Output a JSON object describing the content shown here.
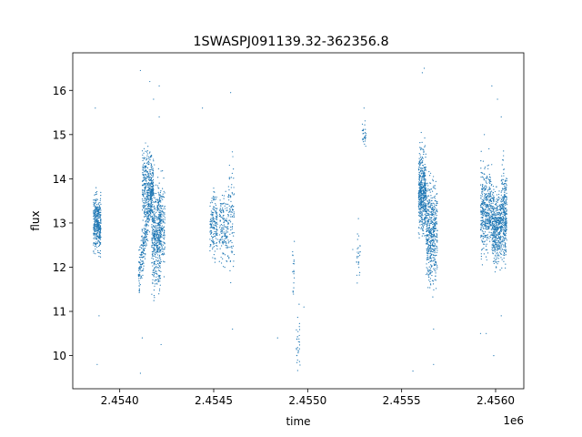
{
  "chart_data": {
    "type": "scatter",
    "title": "1SWASPJ091139.32-362356.8",
    "xlabel": "time",
    "ylabel": "flux",
    "x_offset_label": "1e6",
    "xlim": [
      2.45375,
      2.45615
    ],
    "ylim": [
      9.25,
      16.85
    ],
    "x_ticks": [
      2.454,
      2.4545,
      2.455,
      2.4555,
      2.456
    ],
    "x_tick_labels": [
      "2.4540",
      "2.4545",
      "2.4550",
      "2.4555",
      "2.4560"
    ],
    "y_ticks": [
      10,
      11,
      12,
      13,
      14,
      15,
      16
    ],
    "y_tick_labels": [
      "10",
      "11",
      "12",
      "13",
      "14",
      "15",
      "16"
    ],
    "grid": false,
    "marker_color": "#1f77b4",
    "marker_size": 0.6,
    "clusters": [
      {
        "x": [
          2.45386,
          2.4539
        ],
        "y_mean": 13.0,
        "y_spread": 0.3,
        "n": 380
      },
      {
        "x": [
          2.4541,
          2.45418
        ],
        "y_start": 11.7,
        "y_end": 14.0,
        "y_spread": 0.25,
        "n": 360
      },
      {
        "x": [
          2.45412,
          2.45417
        ],
        "y_mean": 13.9,
        "y_spread": 0.4,
        "n": 300
      },
      {
        "x": [
          2.45417,
          2.45422
        ],
        "y_mean": 12.7,
        "y_spread": 0.55,
        "n": 420
      },
      {
        "x": [
          2.4542,
          2.45424
        ],
        "y_mean": 12.9,
        "y_spread": 0.45,
        "n": 220
      },
      {
        "x": [
          2.45448,
          2.45452
        ],
        "y_mean": 13.0,
        "y_spread": 0.35,
        "n": 170
      },
      {
        "x": [
          2.45453,
          2.45458
        ],
        "y_mean": 12.9,
        "y_spread": 0.4,
        "n": 170
      },
      {
        "x": [
          2.45458,
          2.45461
        ],
        "y_mean": 13.1,
        "y_spread": 0.55,
        "n": 90
      },
      {
        "x": [
          2.45492,
          2.45493
        ],
        "y_mean": 12.0,
        "y_spread": 0.35,
        "n": 18
      },
      {
        "x": [
          2.45494,
          2.45496
        ],
        "y_mean": 10.3,
        "y_spread": 0.3,
        "n": 30
      },
      {
        "x": [
          2.45526,
          2.45528
        ],
        "y_mean": 12.2,
        "y_spread": 0.35,
        "n": 25
      },
      {
        "x": [
          2.45529,
          2.45531
        ],
        "y_mean": 15.0,
        "y_spread": 0.15,
        "n": 30
      },
      {
        "x": [
          2.45559,
          2.45563
        ],
        "y_mean": 13.7,
        "y_spread": 0.45,
        "n": 520
      },
      {
        "x": [
          2.45563,
          2.45569
        ],
        "y_mean": 12.8,
        "y_spread": 0.55,
        "n": 520
      },
      {
        "x": [
          2.45592,
          2.45598
        ],
        "y_mean": 13.3,
        "y_spread": 0.45,
        "n": 420
      },
      {
        "x": [
          2.45598,
          2.45603
        ],
        "y_mean": 12.9,
        "y_spread": 0.4,
        "n": 460
      },
      {
        "x": [
          2.45603,
          2.45606
        ],
        "y_mean": 13.2,
        "y_spread": 0.5,
        "n": 300
      }
    ],
    "outliers": [
      {
        "x": 2.45387,
        "y": 15.6
      },
      {
        "x": 2.45388,
        "y": 9.8
      },
      {
        "x": 2.45389,
        "y": 10.9
      },
      {
        "x": 2.45411,
        "y": 16.45
      },
      {
        "x": 2.45411,
        "y": 9.6
      },
      {
        "x": 2.45412,
        "y": 10.4
      },
      {
        "x": 2.45416,
        "y": 16.2
      },
      {
        "x": 2.45418,
        "y": 15.8
      },
      {
        "x": 2.45421,
        "y": 16.1
      },
      {
        "x": 2.45422,
        "y": 10.25
      },
      {
        "x": 2.45421,
        "y": 15.4
      },
      {
        "x": 2.45444,
        "y": 15.6
      },
      {
        "x": 2.45459,
        "y": 15.95
      },
      {
        "x": 2.4546,
        "y": 10.6
      },
      {
        "x": 2.45484,
        "y": 10.4
      },
      {
        "x": 2.45492,
        "y": 12.35
      },
      {
        "x": 2.45498,
        "y": 11.1
      },
      {
        "x": 2.45524,
        "y": 12.4
      },
      {
        "x": 2.45527,
        "y": 13.1
      },
      {
        "x": 2.4553,
        "y": 15.6
      },
      {
        "x": 2.45556,
        "y": 9.65
      },
      {
        "x": 2.45561,
        "y": 16.4
      },
      {
        "x": 2.45562,
        "y": 16.5
      },
      {
        "x": 2.45567,
        "y": 9.8
      },
      {
        "x": 2.45567,
        "y": 10.6
      },
      {
        "x": 2.45592,
        "y": 10.5
      },
      {
        "x": 2.45594,
        "y": 15.0
      },
      {
        "x": 2.45598,
        "y": 16.1
      },
      {
        "x": 2.45601,
        "y": 15.8
      },
      {
        "x": 2.45603,
        "y": 15.4
      },
      {
        "x": 2.45603,
        "y": 10.9
      },
      {
        "x": 2.45599,
        "y": 10.0
      },
      {
        "x": 2.45595,
        "y": 10.5
      }
    ]
  }
}
